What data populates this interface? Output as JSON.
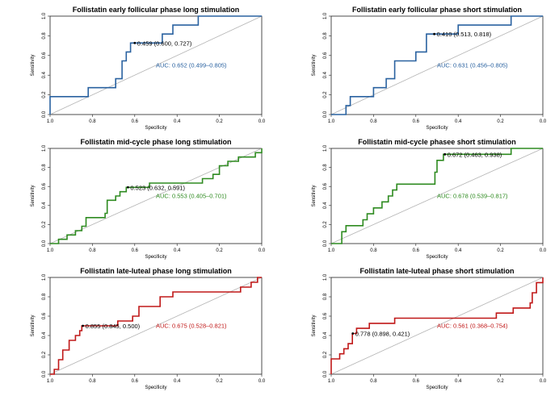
{
  "chart_data": [
    {
      "type": "line",
      "title": "Follistatin early follicular phase long stimulation",
      "xlabel": "Specificity",
      "ylabel": "Sensitivity",
      "xlim": [
        1.0,
        0.0
      ],
      "ylim": [
        0.0,
        1.0
      ],
      "x_ticks": [
        "1.0",
        "0.8",
        "0.6",
        "0.4",
        "0.2",
        "0.0"
      ],
      "y_ticks": [
        "0.0",
        "0.2",
        "0.4",
        "0.6",
        "0.8",
        "1.0"
      ],
      "color": "#2a62a0",
      "threshold": {
        "specificity": 0.6,
        "sensitivity": 0.727,
        "label": "0.459 (0.600, 0.727)"
      },
      "auc_label": "AUC: 0.652 (0.499–0.805)",
      "auc_pos": [
        0.5,
        0.48
      ],
      "curve": [
        [
          1.0,
          0.0
        ],
        [
          1.0,
          0.182
        ],
        [
          0.82,
          0.182
        ],
        [
          0.82,
          0.273
        ],
        [
          0.69,
          0.273
        ],
        [
          0.69,
          0.364
        ],
        [
          0.66,
          0.364
        ],
        [
          0.66,
          0.545
        ],
        [
          0.64,
          0.545
        ],
        [
          0.64,
          0.636
        ],
        [
          0.62,
          0.636
        ],
        [
          0.62,
          0.727
        ],
        [
          0.47,
          0.727
        ],
        [
          0.47,
          0.818
        ],
        [
          0.42,
          0.818
        ],
        [
          0.42,
          0.909
        ],
        [
          0.3,
          0.909
        ],
        [
          0.3,
          1.0
        ],
        [
          0.0,
          1.0
        ]
      ]
    },
    {
      "type": "line",
      "title": "Follistatin early follicular phase short stimulation",
      "xlabel": "Specificity",
      "ylabel": "Sensitivity",
      "xlim": [
        1.0,
        0.0
      ],
      "ylim": [
        0.0,
        1.0
      ],
      "x_ticks": [
        "1.0",
        "0.8",
        "0.6",
        "0.4",
        "0.2",
        "0.0"
      ],
      "y_ticks": [
        "0.0",
        "0.2",
        "0.4",
        "0.6",
        "0.8",
        "1.0"
      ],
      "color": "#2a62a0",
      "threshold": {
        "specificity": 0.513,
        "sensitivity": 0.818,
        "label": "0.410 (0.513, 0.818)"
      },
      "auc_label": "AUC: 0.631 (0.456–0.805)",
      "auc_pos": [
        0.5,
        0.48
      ],
      "curve": [
        [
          1.0,
          0.0
        ],
        [
          0.93,
          0.0
        ],
        [
          0.93,
          0.091
        ],
        [
          0.91,
          0.091
        ],
        [
          0.91,
          0.182
        ],
        [
          0.8,
          0.182
        ],
        [
          0.8,
          0.273
        ],
        [
          0.74,
          0.273
        ],
        [
          0.74,
          0.364
        ],
        [
          0.7,
          0.364
        ],
        [
          0.7,
          0.545
        ],
        [
          0.6,
          0.545
        ],
        [
          0.6,
          0.636
        ],
        [
          0.55,
          0.636
        ],
        [
          0.55,
          0.818
        ],
        [
          0.4,
          0.818
        ],
        [
          0.4,
          0.909
        ],
        [
          0.15,
          0.909
        ],
        [
          0.15,
          1.0
        ],
        [
          0.0,
          1.0
        ]
      ]
    },
    {
      "type": "line",
      "title": "Follistatin mid-cycle phase long stimulation",
      "xlabel": "Specificity",
      "ylabel": "Sensitivity",
      "xlim": [
        1.0,
        0.0
      ],
      "ylim": [
        0.0,
        1.0
      ],
      "x_ticks": [
        "1.0",
        "0.8",
        "0.6",
        "0.4",
        "0.2",
        "0.0"
      ],
      "y_ticks": [
        "0.0",
        "0.2",
        "0.4",
        "0.6",
        "0.8",
        "1.0"
      ],
      "color": "#2e8b20",
      "threshold": {
        "specificity": 0.632,
        "sensitivity": 0.591,
        "label": "0.523 (0.632, 0.591)"
      },
      "auc_label": "AUC: 0.553 (0.405–0.701)",
      "auc_pos": [
        0.5,
        0.48
      ],
      "curve": [
        [
          1.0,
          0.0
        ],
        [
          0.96,
          0.0
        ],
        [
          0.96,
          0.045
        ],
        [
          0.92,
          0.045
        ],
        [
          0.92,
          0.091
        ],
        [
          0.88,
          0.091
        ],
        [
          0.88,
          0.136
        ],
        [
          0.85,
          0.136
        ],
        [
          0.85,
          0.182
        ],
        [
          0.83,
          0.182
        ],
        [
          0.83,
          0.273
        ],
        [
          0.74,
          0.273
        ],
        [
          0.74,
          0.318
        ],
        [
          0.73,
          0.318
        ],
        [
          0.73,
          0.455
        ],
        [
          0.69,
          0.455
        ],
        [
          0.69,
          0.5
        ],
        [
          0.67,
          0.5
        ],
        [
          0.67,
          0.545
        ],
        [
          0.64,
          0.545
        ],
        [
          0.64,
          0.591
        ],
        [
          0.53,
          0.591
        ],
        [
          0.53,
          0.636
        ],
        [
          0.28,
          0.636
        ],
        [
          0.28,
          0.682
        ],
        [
          0.23,
          0.682
        ],
        [
          0.23,
          0.727
        ],
        [
          0.2,
          0.727
        ],
        [
          0.2,
          0.818
        ],
        [
          0.16,
          0.818
        ],
        [
          0.16,
          0.864
        ],
        [
          0.11,
          0.864
        ],
        [
          0.11,
          0.909
        ],
        [
          0.03,
          0.909
        ],
        [
          0.03,
          0.955
        ],
        [
          0.0,
          0.955
        ],
        [
          0.0,
          1.0
        ]
      ]
    },
    {
      "type": "line",
      "title": "Follistatin mid-cycle phasee short stimulation",
      "xlabel": "Specificity",
      "ylabel": "Sensitivity",
      "xlim": [
        1.0,
        0.0
      ],
      "ylim": [
        0.0,
        1.0
      ],
      "x_ticks": [
        "1.0",
        "0.8",
        "0.6",
        "0.4",
        "0.2",
        "0.0"
      ],
      "y_ticks": [
        "0.0",
        "0.2",
        "0.4",
        "0.6",
        "0.8",
        "1.0"
      ],
      "color": "#2e8b20",
      "threshold": {
        "specificity": 0.463,
        "sensitivity": 0.938,
        "label": "0.672 (0.463, 0.938)"
      },
      "auc_label": "AUC: 0.678 (0.539–0.817)",
      "auc_pos": [
        0.5,
        0.48
      ],
      "curve": [
        [
          1.0,
          0.0
        ],
        [
          0.95,
          0.0
        ],
        [
          0.95,
          0.125
        ],
        [
          0.93,
          0.125
        ],
        [
          0.93,
          0.188
        ],
        [
          0.85,
          0.188
        ],
        [
          0.85,
          0.25
        ],
        [
          0.83,
          0.25
        ],
        [
          0.83,
          0.313
        ],
        [
          0.8,
          0.313
        ],
        [
          0.8,
          0.375
        ],
        [
          0.76,
          0.375
        ],
        [
          0.76,
          0.438
        ],
        [
          0.73,
          0.438
        ],
        [
          0.73,
          0.5
        ],
        [
          0.71,
          0.5
        ],
        [
          0.71,
          0.563
        ],
        [
          0.69,
          0.563
        ],
        [
          0.69,
          0.625
        ],
        [
          0.51,
          0.625
        ],
        [
          0.51,
          0.75
        ],
        [
          0.5,
          0.75
        ],
        [
          0.5,
          0.875
        ],
        [
          0.47,
          0.875
        ],
        [
          0.47,
          0.938
        ],
        [
          0.15,
          0.938
        ],
        [
          0.15,
          1.0
        ],
        [
          0.0,
          1.0
        ]
      ]
    },
    {
      "type": "line",
      "title": "Follistatin late-luteal phase long stimulation",
      "xlabel": "Specificity",
      "ylabel": "Sensitivity",
      "xlim": [
        1.0,
        0.0
      ],
      "ylim": [
        0.0,
        1.0
      ],
      "x_ticks": [
        "1.0",
        "0.8",
        "0.6",
        "0.4",
        "0.2",
        "0.0"
      ],
      "y_ticks": [
        "0.0",
        "0.2",
        "0.4",
        "0.6",
        "0.8",
        "1.0"
      ],
      "color": "#c01818",
      "threshold": {
        "specificity": 0.845,
        "sensitivity": 0.5,
        "label": "0.855 (0.845, 0.500)"
      },
      "auc_label": "AUC: 0.675 (0.528–0.821)",
      "auc_pos": [
        0.5,
        0.48
      ],
      "curve": [
        [
          1.0,
          0.0
        ],
        [
          0.98,
          0.0
        ],
        [
          0.98,
          0.05
        ],
        [
          0.96,
          0.05
        ],
        [
          0.96,
          0.15
        ],
        [
          0.94,
          0.15
        ],
        [
          0.94,
          0.25
        ],
        [
          0.91,
          0.25
        ],
        [
          0.91,
          0.35
        ],
        [
          0.88,
          0.35
        ],
        [
          0.88,
          0.4
        ],
        [
          0.86,
          0.4
        ],
        [
          0.86,
          0.45
        ],
        [
          0.85,
          0.45
        ],
        [
          0.85,
          0.5
        ],
        [
          0.68,
          0.5
        ],
        [
          0.68,
          0.55
        ],
        [
          0.61,
          0.55
        ],
        [
          0.61,
          0.6
        ],
        [
          0.58,
          0.6
        ],
        [
          0.58,
          0.7
        ],
        [
          0.48,
          0.7
        ],
        [
          0.48,
          0.8
        ],
        [
          0.42,
          0.8
        ],
        [
          0.42,
          0.85
        ],
        [
          0.1,
          0.85
        ],
        [
          0.1,
          0.9
        ],
        [
          0.05,
          0.9
        ],
        [
          0.05,
          0.95
        ],
        [
          0.02,
          0.95
        ],
        [
          0.02,
          1.0
        ],
        [
          0.0,
          1.0
        ]
      ]
    },
    {
      "type": "line",
      "title": "Follistatin late-luteal phase short stimulation",
      "xlabel": "Specificity",
      "ylabel": "Sensitivity",
      "xlim": [
        1.0,
        0.0
      ],
      "ylim": [
        0.0,
        1.0
      ],
      "x_ticks": [
        "1.0",
        "0.8",
        "0.6",
        "0.4",
        "0.2",
        "0.0"
      ],
      "y_ticks": [
        "0.0",
        "0.2",
        "0.4",
        "0.6",
        "0.8",
        "1.0"
      ],
      "color": "#c01818",
      "threshold": {
        "specificity": 0.898,
        "sensitivity": 0.421,
        "label": "0.778 (0.898, 0.421)"
      },
      "auc_label": "AUC: 0.561 (0.368–0.754)",
      "auc_pos": [
        0.5,
        0.48
      ],
      "curve": [
        [
          1.0,
          0.0
        ],
        [
          1.0,
          0.158
        ],
        [
          0.96,
          0.158
        ],
        [
          0.96,
          0.211
        ],
        [
          0.94,
          0.211
        ],
        [
          0.94,
          0.263
        ],
        [
          0.92,
          0.263
        ],
        [
          0.92,
          0.316
        ],
        [
          0.9,
          0.316
        ],
        [
          0.9,
          0.421
        ],
        [
          0.88,
          0.421
        ],
        [
          0.88,
          0.474
        ],
        [
          0.82,
          0.474
        ],
        [
          0.82,
          0.526
        ],
        [
          0.7,
          0.526
        ],
        [
          0.7,
          0.579
        ],
        [
          0.22,
          0.579
        ],
        [
          0.22,
          0.632
        ],
        [
          0.14,
          0.632
        ],
        [
          0.14,
          0.684
        ],
        [
          0.06,
          0.684
        ],
        [
          0.06,
          0.737
        ],
        [
          0.05,
          0.737
        ],
        [
          0.05,
          0.842
        ],
        [
          0.03,
          0.842
        ],
        [
          0.03,
          0.947
        ],
        [
          0.0,
          0.947
        ],
        [
          0.0,
          1.0
        ]
      ]
    }
  ]
}
